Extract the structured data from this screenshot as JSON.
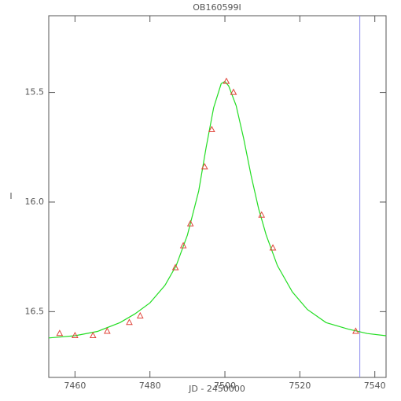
{
  "chart_data": {
    "type": "scatter",
    "title": "OB160599I",
    "x_label": "JD - 2450000",
    "y_label": "I",
    "xlim": [
      7453,
      7543
    ],
    "ylim": [
      16.8,
      15.15
    ],
    "xticks": [
      7460,
      7480,
      7500,
      7520,
      7540
    ],
    "yticks": [
      15.5,
      {
        "value": 16,
        "label": "16.0"
      },
      16.5
    ],
    "points": {
      "color": "#e0443a",
      "x": [
        7455.9,
        7460,
        7464.8,
        7468.6,
        7474.5,
        7477.4,
        7486.8,
        7488.9,
        7490.8,
        7494.6,
        7496.5,
        7500.4,
        7502.3,
        7509.8,
        7512.8,
        7534.9
      ],
      "values": [
        16.6,
        16.61,
        16.61,
        16.59,
        16.55,
        16.52,
        16.3,
        16.2,
        16.1,
        15.84,
        15.67,
        15.45,
        15.5,
        16.06,
        16.21,
        16.59
      ]
    },
    "model": {
      "color": "#22dd22",
      "x": [
        7453,
        7460,
        7466,
        7472,
        7476,
        7480,
        7484,
        7487,
        7490,
        7493,
        7495,
        7497,
        7499,
        7500,
        7501,
        7503,
        7505,
        7507,
        7509,
        7511,
        7514,
        7518,
        7522,
        7527,
        7533,
        7538,
        7543
      ],
      "values": [
        16.62,
        16.61,
        16.59,
        16.55,
        16.51,
        16.46,
        16.38,
        16.29,
        16.15,
        15.95,
        15.75,
        15.57,
        15.46,
        15.45,
        15.47,
        15.56,
        15.71,
        15.88,
        16.03,
        16.15,
        16.29,
        16.41,
        16.49,
        16.55,
        16.58,
        16.6,
        16.61
      ]
    },
    "vline": {
      "x": 7536,
      "color": "#8888ee"
    }
  }
}
